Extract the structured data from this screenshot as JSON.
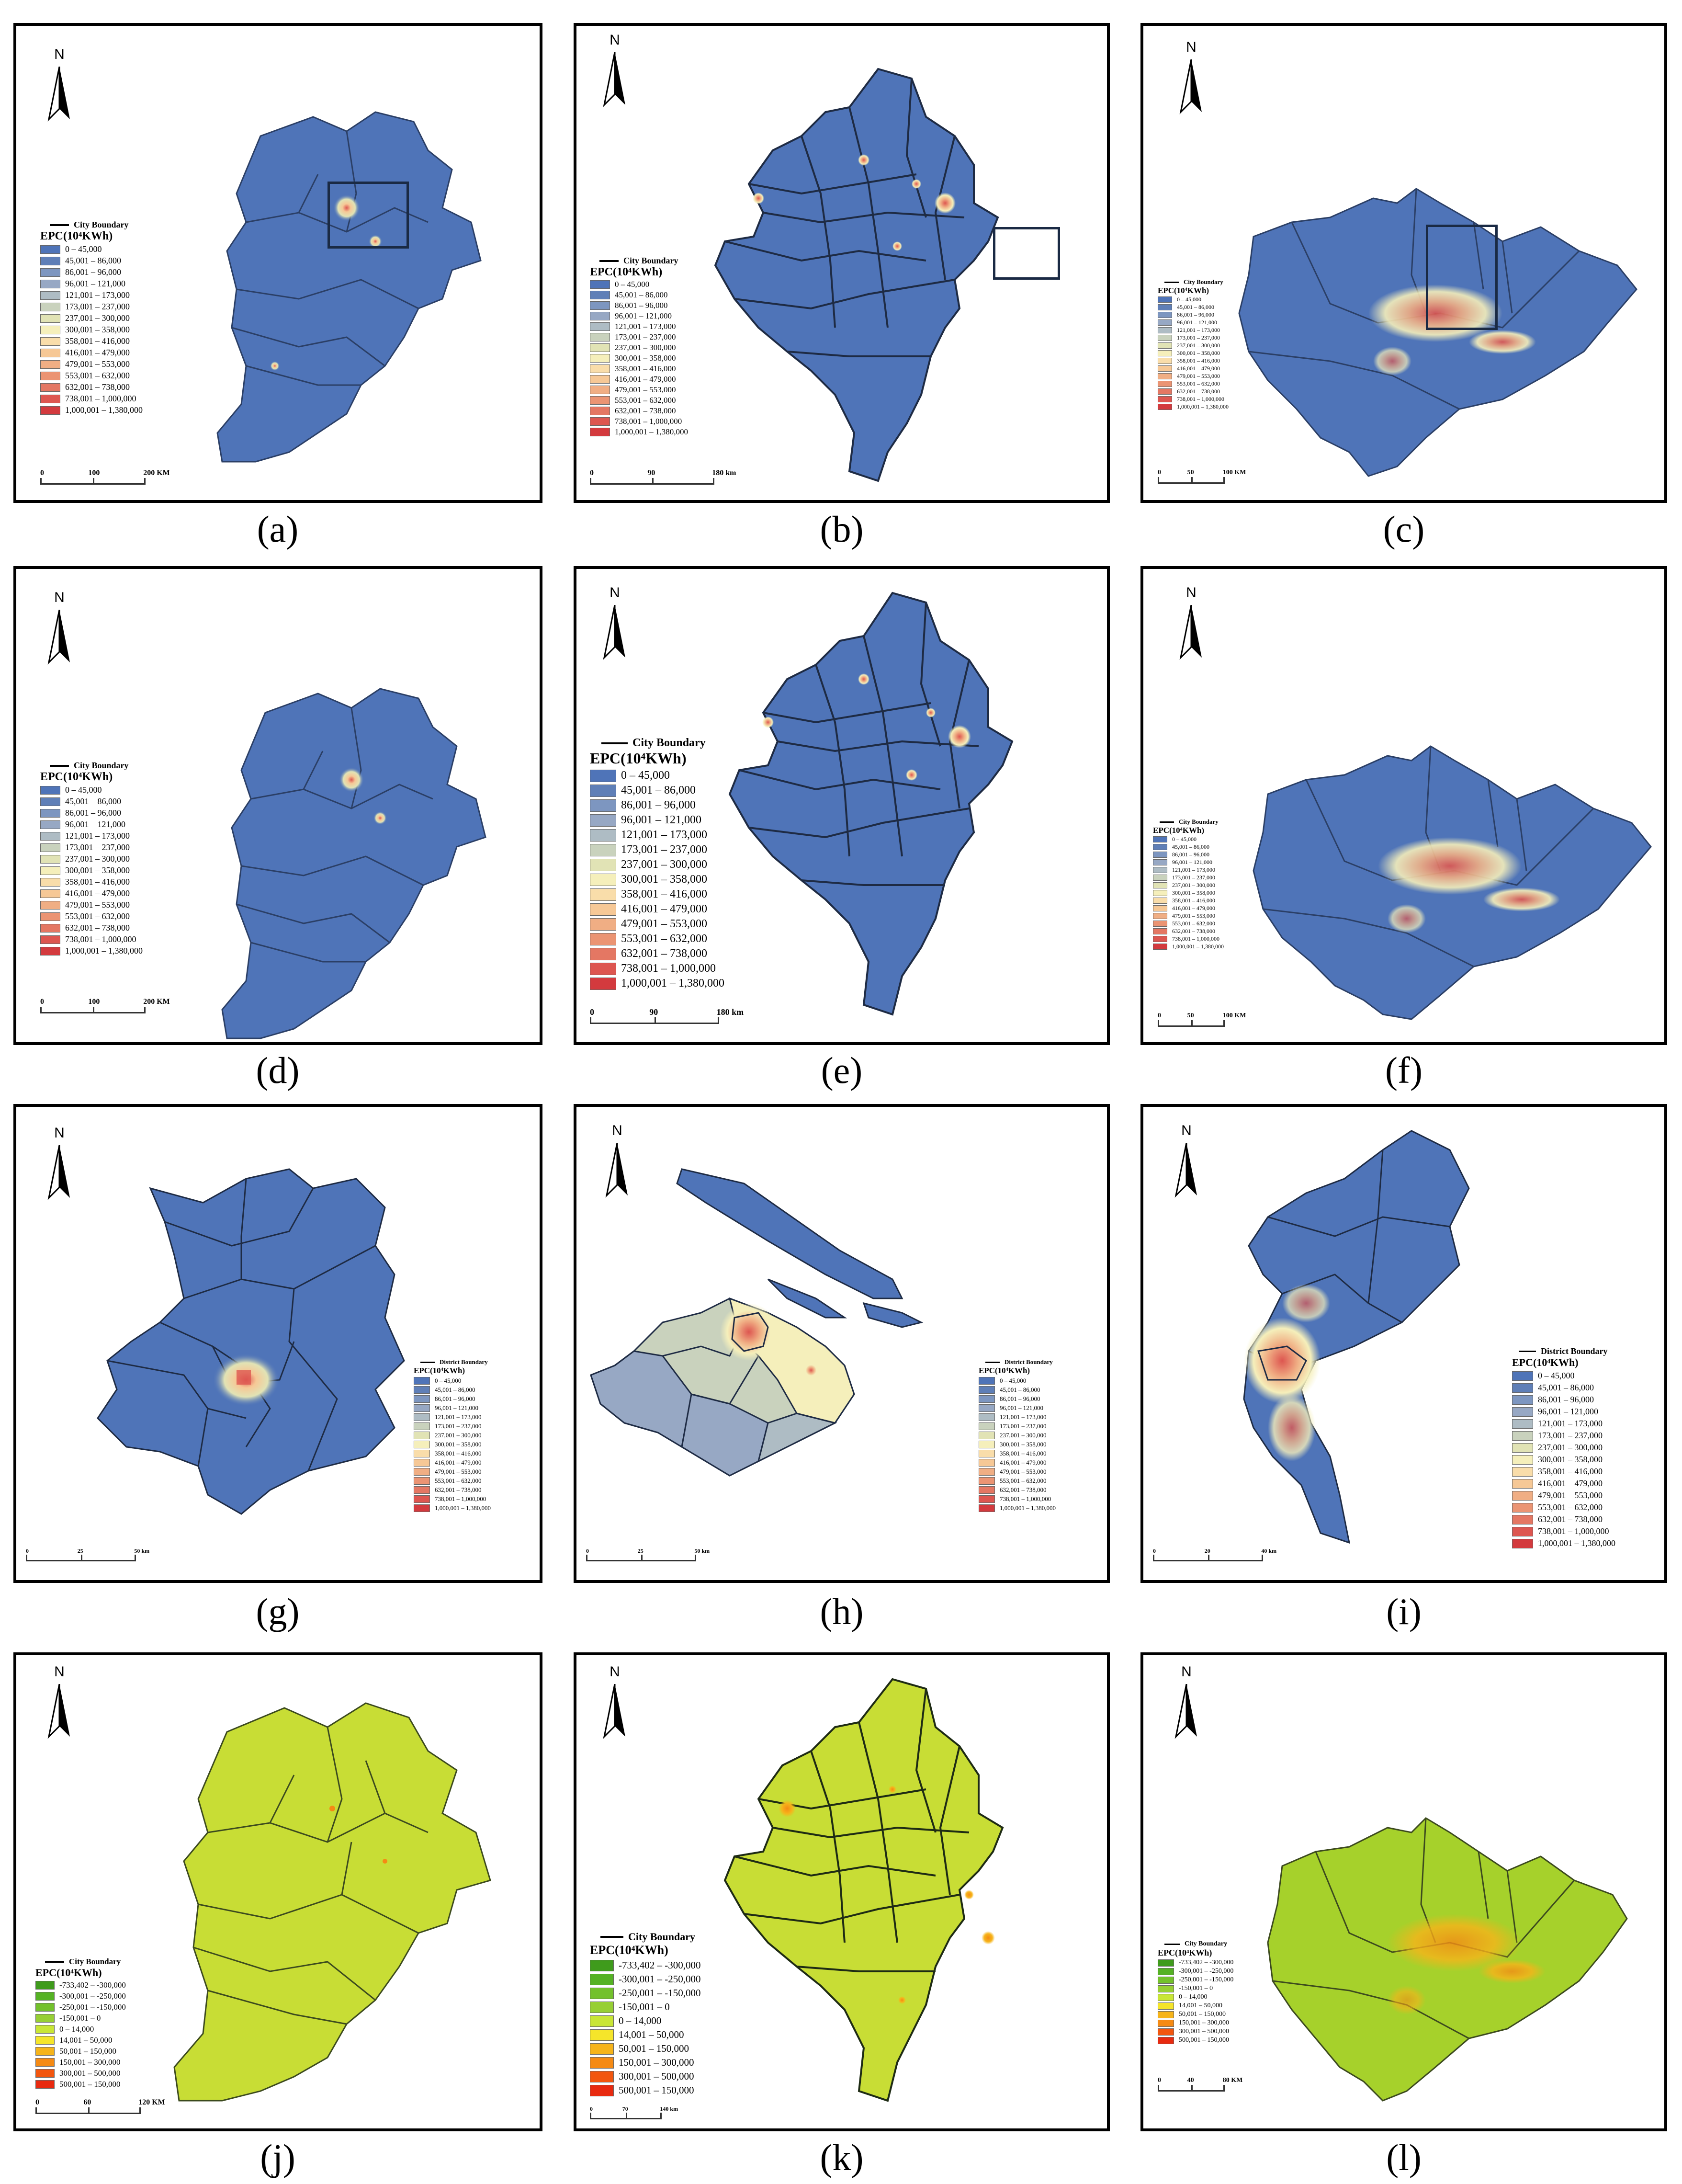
{
  "colors": {
    "epc": [
      "#4f74b8",
      "#5f7fb7",
      "#7d96c0",
      "#97a8c4",
      "#aebcc4",
      "#c9d2bd",
      "#e1e3b5",
      "#f5efbb",
      "#f9ddaa",
      "#f6c896",
      "#f0ae84",
      "#eb9473",
      "#e47763",
      "#dd5650",
      "#d33a3e"
    ],
    "change": [
      "#3f9b1c",
      "#55b224",
      "#73c12c",
      "#97cf34",
      "#c9e636",
      "#f5e52a",
      "#f6b41a",
      "#f58a14",
      "#f2560f",
      "#e82a10"
    ],
    "base_blue": "#4f74b8",
    "base_green": "#c8dd35",
    "base_green_l": "#a6d12b"
  },
  "north_letter": "N",
  "legend": {
    "city_boundary": "City Boundary",
    "district_boundary": "District Boundary",
    "epc_title": "EPC(10⁴KWh)",
    "epc_classes": [
      "0 – 45,000",
      "45,001 – 86,000",
      "86,001 – 96,000",
      "96,001 – 121,000",
      "121,001 – 173,000",
      "173,001 – 237,000",
      "237,001 – 300,000",
      "300,001 – 358,000",
      "358,001 – 416,000",
      "416,001 – 479,000",
      "479,001 – 553,000",
      "553,001 – 632,000",
      "632,001 – 738,000",
      "738,001 – 1,000,000",
      "1,000,001 – 1,380,000"
    ],
    "change_classes": [
      "-733,402 – -300,000",
      "-300,001 – -250,000",
      "-250,001 – -150,000",
      "-150,001 – 0",
      "0 – 14,000",
      "14,001 – 50,000",
      "50,001 – 150,000",
      "150,001 – 300,000",
      "300,001 – 500,000",
      "500,001 – 150,000"
    ]
  },
  "panels": [
    {
      "caption": "(a)",
      "scale": [
        "0",
        "100",
        "200 KM"
      ]
    },
    {
      "caption": "(b)",
      "scale": [
        "0",
        "90",
        "180 km"
      ]
    },
    {
      "caption": "(c)",
      "scale": [
        "0",
        "50",
        "100 KM"
      ]
    },
    {
      "caption": "(d)",
      "scale": [
        "0",
        "100",
        "200 KM"
      ]
    },
    {
      "caption": "(e)",
      "scale": [
        "0",
        "90",
        "180 km"
      ]
    },
    {
      "caption": "(f)",
      "scale": [
        "0",
        "50",
        "100 KM"
      ]
    },
    {
      "caption": "(g)",
      "scale": [
        "0",
        "25",
        "50 km"
      ]
    },
    {
      "caption": "(h)",
      "scale": [
        "0",
        "25",
        "50 km"
      ]
    },
    {
      "caption": "(i)",
      "scale": [
        "0",
        "20",
        "40 km"
      ]
    },
    {
      "caption": "(j)",
      "scale": [
        "0",
        "60",
        "120 KM"
      ]
    },
    {
      "caption": "(k)",
      "scale": [
        "0",
        "70",
        "140 km"
      ]
    },
    {
      "caption": "(l)",
      "scale": [
        "0",
        "40",
        "80 KM"
      ]
    }
  ]
}
